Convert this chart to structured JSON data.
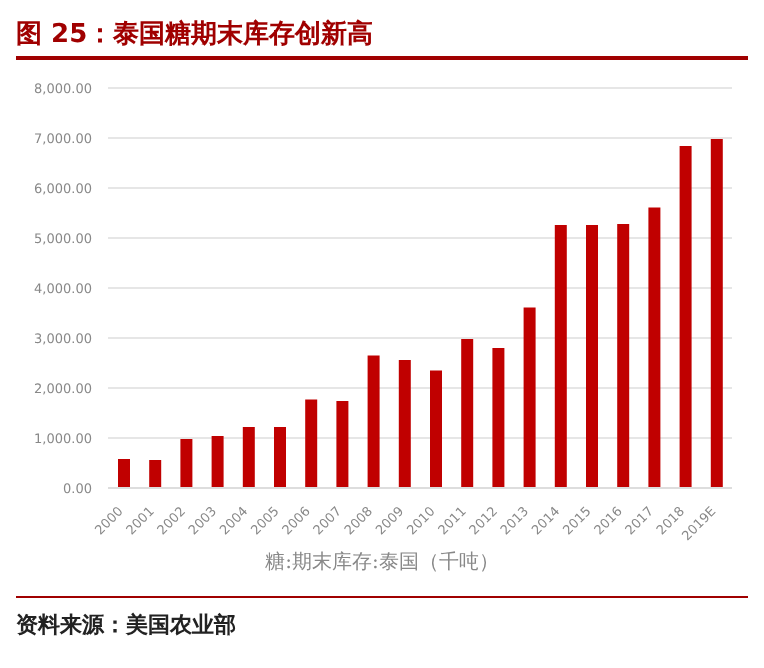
{
  "chart_data": {
    "type": "bar",
    "title": "图 25：泰国糖期末库存创新高",
    "xlabel": "糖:期末库存:泰国（千吨）",
    "annotations": [
      "资料来源：美国农业部"
    ],
    "categories": [
      "2000",
      "2001",
      "2002",
      "2003",
      "2004",
      "2005",
      "2006",
      "2007",
      "2008",
      "2009",
      "2010",
      "2011",
      "2012",
      "2013",
      "2014",
      "2015",
      "2016",
      "2017",
      "2018",
      "2019E"
    ],
    "values": [
      580,
      560,
      980,
      1040,
      1220,
      1220,
      1770,
      1740,
      2650,
      2560,
      2350,
      2980,
      2800,
      3610,
      5260,
      5260,
      5280,
      5610,
      6840,
      6980
    ],
    "color": "#c00000",
    "ylim": [
      0,
      8000
    ],
    "yticks": [
      {
        "value": 0,
        "label": "0.00"
      },
      {
        "value": 1000,
        "label": "1,000.00"
      },
      {
        "value": 2000,
        "label": "2,000.00"
      },
      {
        "value": 3000,
        "label": "3,000.00"
      },
      {
        "value": 4000,
        "label": "4,000.00"
      },
      {
        "value": 5000,
        "label": "5,000.00"
      },
      {
        "value": 6000,
        "label": "6,000.00"
      },
      {
        "value": 7000,
        "label": "7,000.00"
      },
      {
        "value": 8000,
        "label": "8,000.00"
      }
    ],
    "grid": "y"
  }
}
